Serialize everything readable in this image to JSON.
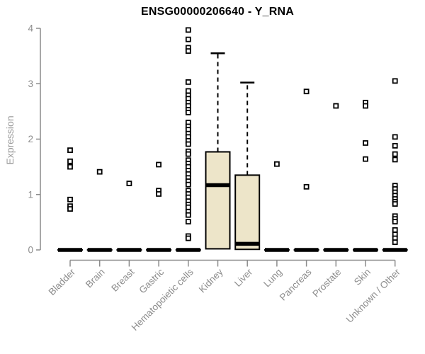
{
  "chart_data": {
    "type": "boxplot",
    "title": "ENSG00000206640 - Y_RNA",
    "ylabel": "Expression",
    "ylim": [
      0,
      4
    ],
    "yticks": [
      0,
      1,
      2,
      3,
      4
    ],
    "grid": false,
    "legend": null,
    "colors": {
      "box_fill": "#EDE5C9",
      "box_border": "#000000",
      "axis_line": "#8c8c8c",
      "tick_label": "#8c8c8c",
      "outlier": "#000000",
      "title": "#000000"
    },
    "categories": [
      "Bladder",
      "Brain",
      "Breast",
      "Gastric",
      "Hematopoietic cells",
      "Kidney",
      "Liver",
      "Lung",
      "Pancreas",
      "Prostate",
      "Skin",
      "Unknown / Other"
    ],
    "boxes": [
      {
        "category": "Bladder",
        "q1": 0,
        "median": 0,
        "q3": 0,
        "whisker_low": 0,
        "whisker_high": 0,
        "outliers": [
          1.8,
          1.6,
          1.5,
          0.91,
          0.79,
          0.74
        ]
      },
      {
        "category": "Brain",
        "q1": 0,
        "median": 0,
        "q3": 0,
        "whisker_low": 0,
        "whisker_high": 0,
        "outliers": [
          1.41
        ]
      },
      {
        "category": "Breast",
        "q1": 0,
        "median": 0,
        "q3": 0,
        "whisker_low": 0,
        "whisker_high": 0,
        "outliers": [
          1.2
        ]
      },
      {
        "category": "Gastric",
        "q1": 0,
        "median": 0,
        "q3": 0,
        "whisker_low": 0,
        "whisker_high": 0,
        "outliers": [
          1.54,
          1.07,
          1.01
        ]
      },
      {
        "category": "Hematopoietic cells",
        "q1": 0,
        "median": 0,
        "q3": 0,
        "whisker_low": 0,
        "whisker_high": 0,
        "outliers": [
          3.97,
          3.8,
          3.65,
          3.59,
          3.03,
          2.87,
          2.79,
          2.73,
          2.66,
          2.6,
          2.53,
          2.48,
          2.3,
          2.23,
          2.17,
          2.1,
          2.04,
          1.97,
          1.91,
          1.78,
          1.73,
          1.62,
          1.56,
          1.5,
          1.43,
          1.37,
          1.3,
          1.24,
          1.18,
          1.07,
          1.01,
          0.95,
          0.88,
          0.82,
          0.77,
          0.69,
          0.63,
          0.51,
          0.25,
          0.21
        ]
      },
      {
        "category": "Kidney",
        "q1": 0.02,
        "median": 1.17,
        "q3": 1.77,
        "whisker_low": 0,
        "whisker_high": 3.55,
        "outliers": []
      },
      {
        "category": "Liver",
        "q1": 0.01,
        "median": 0.11,
        "q3": 1.35,
        "whisker_low": 0,
        "whisker_high": 3.02,
        "outliers": []
      },
      {
        "category": "Lung",
        "q1": 0,
        "median": 0,
        "q3": 0,
        "whisker_low": 0,
        "whisker_high": 0,
        "outliers": [
          1.55
        ]
      },
      {
        "category": "Pancreas",
        "q1": 0,
        "median": 0,
        "q3": 0,
        "whisker_low": 0,
        "whisker_high": 0,
        "outliers": [
          2.86,
          1.14
        ]
      },
      {
        "category": "Prostate",
        "q1": 0,
        "median": 0,
        "q3": 0,
        "whisker_low": 0,
        "whisker_high": 0,
        "outliers": [
          2.6
        ]
      },
      {
        "category": "Skin",
        "q1": 0,
        "median": 0,
        "q3": 0,
        "whisker_low": 0,
        "whisker_high": 0,
        "outliers": [
          2.66,
          2.6,
          1.93,
          1.64
        ]
      },
      {
        "category": "Unknown / Other",
        "q1": 0,
        "median": 0,
        "q3": 0,
        "whisker_low": 0,
        "whisker_high": 0,
        "outliers": [
          3.05,
          2.04,
          1.88,
          1.73,
          1.63,
          1.16,
          1.1,
          1.04,
          0.98,
          0.92,
          0.87,
          0.83,
          0.61,
          0.56,
          0.51,
          0.36,
          0.28,
          0.21,
          0.14
        ]
      }
    ]
  }
}
